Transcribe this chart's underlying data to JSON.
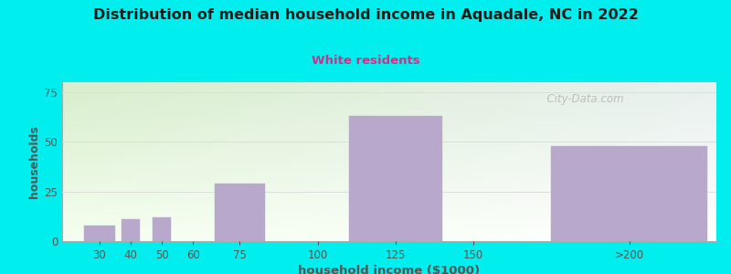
{
  "title": "Distribution of median household income in Aquadale, NC in 2022",
  "subtitle": "White residents",
  "xlabel": "household income ($1000)",
  "ylabel": "households",
  "bg_outer_color": "#00EEEE",
  "bar_color": "#b8a8cc",
  "bar_edge_color": "#b8a8cc",
  "title_color": "#1a1a1a",
  "subtitle_color": "#cc3388",
  "axis_label_color": "#555555",
  "tick_color": "#555555",
  "watermark": "  City-Data.com",
  "yticks": [
    0,
    25,
    50,
    75
  ],
  "grid_color": "#dddddd",
  "bar_lefts": [
    25,
    37,
    47,
    67,
    110,
    175
  ],
  "bar_rights": [
    35,
    43,
    53,
    83,
    140,
    225
  ],
  "bar_heights": [
    8,
    11,
    12,
    29,
    63,
    48
  ],
  "xtick_positions": [
    30,
    40,
    50,
    60,
    75,
    100,
    125,
    150,
    200
  ],
  "xtick_labels": [
    "30",
    "40",
    "50",
    "60",
    "75",
    "100",
    "125",
    "150",
    ">200"
  ],
  "xlim": [
    18,
    228
  ],
  "ylim": [
    0,
    80
  ],
  "grad_top_color": "#d8eecc",
  "grad_bottom_color": "#ffffff",
  "grad_right_color": "#e8f0ee"
}
